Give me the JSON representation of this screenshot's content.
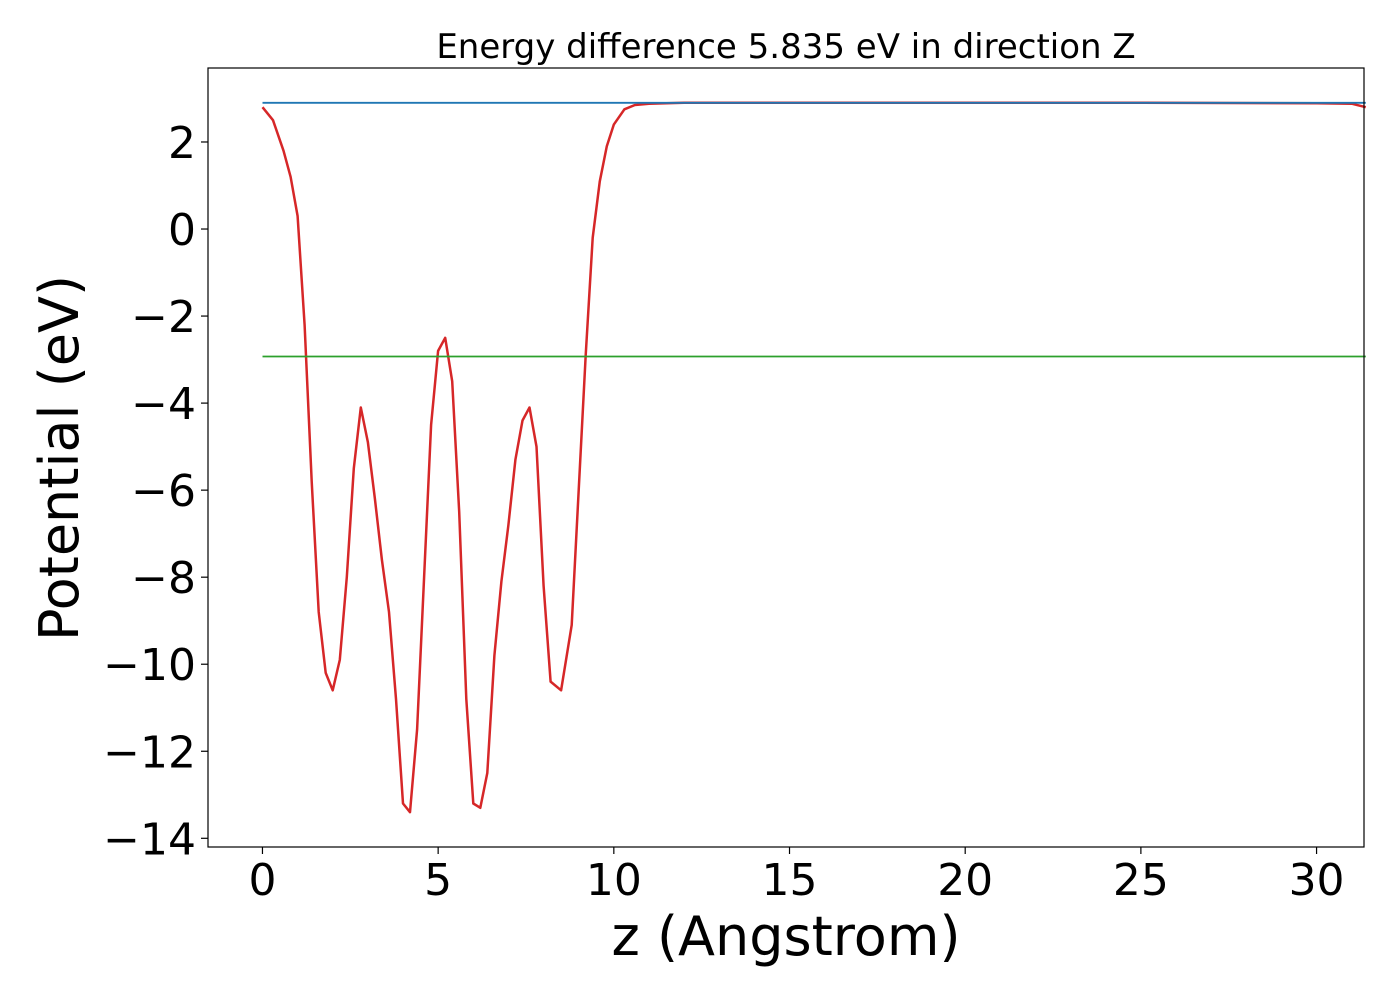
{
  "chart_data": {
    "type": "line",
    "title": "Energy difference 5.835 eV in direction Z",
    "xlabel": "z (Angstrom)",
    "ylabel": "Potential (eV)",
    "xlim": [
      -1.55,
      31.35
    ],
    "ylim": [
      -14.2,
      3.7
    ],
    "xticks": [
      0,
      5,
      10,
      15,
      20,
      25,
      30
    ],
    "yticks": [
      2,
      0,
      -2,
      -4,
      -6,
      -8,
      -10,
      -12,
      -14
    ],
    "ytick_labels": [
      "2",
      "0",
      "−2",
      "−4",
      "−6",
      "−8",
      "−10",
      "−12",
      "−14"
    ],
    "grid": false,
    "legend": "none",
    "series": [
      {
        "color": "#d62728",
        "x": [
          0,
          0.3,
          0.6,
          0.8,
          1.0,
          1.2,
          1.4,
          1.6,
          1.8,
          2.0,
          2.2,
          2.4,
          2.6,
          2.8,
          3.0,
          3.2,
          3.4,
          3.6,
          3.8,
          4.0,
          4.2,
          4.4,
          4.6,
          4.8,
          5.0,
          5.2,
          5.4,
          5.6,
          5.8,
          6.0,
          6.2,
          6.4,
          6.6,
          6.8,
          7.0,
          7.2,
          7.4,
          7.6,
          7.8,
          8.0,
          8.2,
          8.5,
          8.8,
          9.0,
          9.2,
          9.4,
          9.6,
          9.8,
          10.0,
          10.3,
          10.6,
          11.0,
          11.5,
          12.0,
          15,
          20,
          25,
          30,
          31.0,
          31.4
        ],
        "y": [
          2.8,
          2.5,
          1.8,
          1.2,
          0.3,
          -2.2,
          -5.8,
          -8.8,
          -10.2,
          -10.6,
          -9.9,
          -8.0,
          -5.5,
          -4.1,
          -4.9,
          -6.2,
          -7.6,
          -8.8,
          -10.8,
          -13.2,
          -13.4,
          -11.5,
          -8.0,
          -4.5,
          -2.8,
          -2.5,
          -3.5,
          -6.5,
          -10.8,
          -13.2,
          -13.3,
          -12.5,
          -9.8,
          -8.1,
          -6.8,
          -5.3,
          -4.4,
          -4.1,
          -5.0,
          -8.2,
          -10.4,
          -10.6,
          -9.1,
          -6.0,
          -2.9,
          -0.2,
          1.1,
          1.9,
          2.4,
          2.75,
          2.85,
          2.88,
          2.89,
          2.9,
          2.9,
          2.9,
          2.9,
          2.89,
          2.88,
          2.8
        ]
      },
      {
        "color": "#1f77b4",
        "x": [
          0,
          31.4
        ],
        "y": [
          2.9,
          2.9
        ]
      },
      {
        "color": "#2ca02c",
        "x": [
          0,
          31.4
        ],
        "y": [
          -2.93,
          -2.93
        ]
      }
    ]
  }
}
